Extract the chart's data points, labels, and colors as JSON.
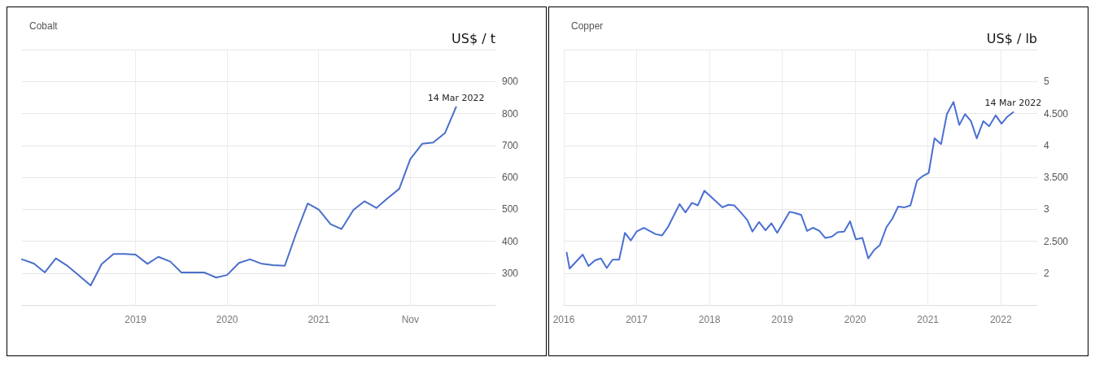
{
  "chart_data": [
    {
      "type": "line",
      "title": "Cobalt",
      "ylabel": "US$ / t",
      "grid": true,
      "marker": "none",
      "line_style": "solid",
      "xlim": [
        2017.76,
        2022.93
      ],
      "xticks": [
        2019,
        2020,
        2021,
        {
          "value": 2022,
          "label": "Nov"
        }
      ],
      "ylim": [
        200,
        1000
      ],
      "yticks": [
        {
          "value": 200,
          "label": null
        },
        300,
        400,
        500,
        600,
        700,
        800,
        900,
        {
          "value": 1000,
          "label": null
        }
      ],
      "annotations": [
        {
          "text": "14 Mar 2022",
          "x": 2022.5,
          "y": 820
        }
      ],
      "series": [
        {
          "color": "#4a6fc9",
          "x": [
            2017.76,
            2017.89,
            2018.01,
            2018.13,
            2018.25,
            2018.38,
            2018.51,
            2018.63,
            2018.76,
            2018.88,
            2019.0,
            2019.13,
            2019.25,
            2019.38,
            2019.5,
            2019.63,
            2019.75,
            2019.88,
            2020.0,
            2020.13,
            2020.25,
            2020.38,
            2020.5,
            2020.63,
            2020.75,
            2020.88,
            2021.0,
            2021.13,
            2021.25,
            2021.38,
            2021.5,
            2021.63,
            2021.75,
            2021.88,
            2022.0,
            2022.13,
            2022.25,
            2022.38,
            2022.5
          ],
          "values": [
            343,
            330,
            302,
            346,
            324,
            293,
            261,
            328,
            360,
            360,
            358,
            329,
            351,
            336,
            302,
            302,
            302,
            286,
            294,
            332,
            343,
            329,
            325,
            323,
            421,
            518,
            499,
            453,
            438,
            498,
            525,
            504,
            534,
            564,
            657,
            705,
            709,
            739,
            820
          ]
        }
      ]
    },
    {
      "type": "line",
      "title": "Copper",
      "ylabel": "US$ / lb",
      "grid": true,
      "marker": "none",
      "line_style": "solid",
      "xlim": [
        2016,
        2022.5
      ],
      "xticks": [
        2016,
        2017,
        2018,
        2019,
        2020,
        2021,
        2022
      ],
      "ylim": [
        1.5,
        5.5
      ],
      "yticks": [
        {
          "value": 1.5,
          "label": null
        },
        2,
        {
          "value": 2.5,
          "label": "2.500"
        },
        3,
        {
          "value": 3.5,
          "label": "3.500"
        },
        4,
        {
          "value": 4.5,
          "label": "4.500"
        },
        5,
        {
          "value": 5.5,
          "label": null
        }
      ],
      "annotations": [
        {
          "text": "14 Mar 2022",
          "x": 2022.17,
          "y": 4.52
        }
      ],
      "series": [
        {
          "color": "#4a6fd4",
          "x": [
            2016.04,
            2016.08,
            2016.26,
            2016.34,
            2016.43,
            2016.51,
            2016.59,
            2016.67,
            2016.76,
            2016.84,
            2016.92,
            2017.0,
            2017.1,
            2017.26,
            2017.35,
            2017.43,
            2017.59,
            2017.67,
            2017.76,
            2017.84,
            2017.93,
            2018.18,
            2018.26,
            2018.34,
            2018.43,
            2018.52,
            2018.59,
            2018.68,
            2018.77,
            2018.85,
            2018.93,
            2019.1,
            2019.18,
            2019.26,
            2019.34,
            2019.42,
            2019.51,
            2019.59,
            2019.68,
            2019.76,
            2019.85,
            2019.93,
            2020.01,
            2020.1,
            2020.18,
            2020.26,
            2020.34,
            2020.43,
            2020.51,
            2020.59,
            2020.68,
            2020.76,
            2020.85,
            2020.93,
            2021.01,
            2021.09,
            2021.18,
            2021.26,
            2021.35,
            2021.43,
            2021.51,
            2021.59,
            2021.67,
            2021.76,
            2021.84,
            2021.93,
            2022.01,
            2022.09,
            2022.17
          ],
          "values": [
            2.32,
            2.07,
            2.29,
            2.11,
            2.2,
            2.23,
            2.08,
            2.21,
            2.21,
            2.63,
            2.51,
            2.65,
            2.71,
            2.61,
            2.59,
            2.72,
            3.08,
            2.95,
            3.1,
            3.06,
            3.29,
            3.03,
            3.07,
            3.06,
            2.95,
            2.83,
            2.65,
            2.8,
            2.67,
            2.78,
            2.63,
            2.96,
            2.94,
            2.91,
            2.66,
            2.71,
            2.66,
            2.55,
            2.57,
            2.64,
            2.65,
            2.81,
            2.53,
            2.55,
            2.23,
            2.36,
            2.44,
            2.72,
            2.85,
            3.04,
            3.03,
            3.06,
            3.45,
            3.52,
            3.57,
            4.11,
            4.02,
            4.49,
            4.68,
            4.32,
            4.49,
            4.38,
            4.11,
            4.38,
            4.3,
            4.47,
            4.34,
            4.45,
            4.52
          ]
        }
      ]
    }
  ]
}
